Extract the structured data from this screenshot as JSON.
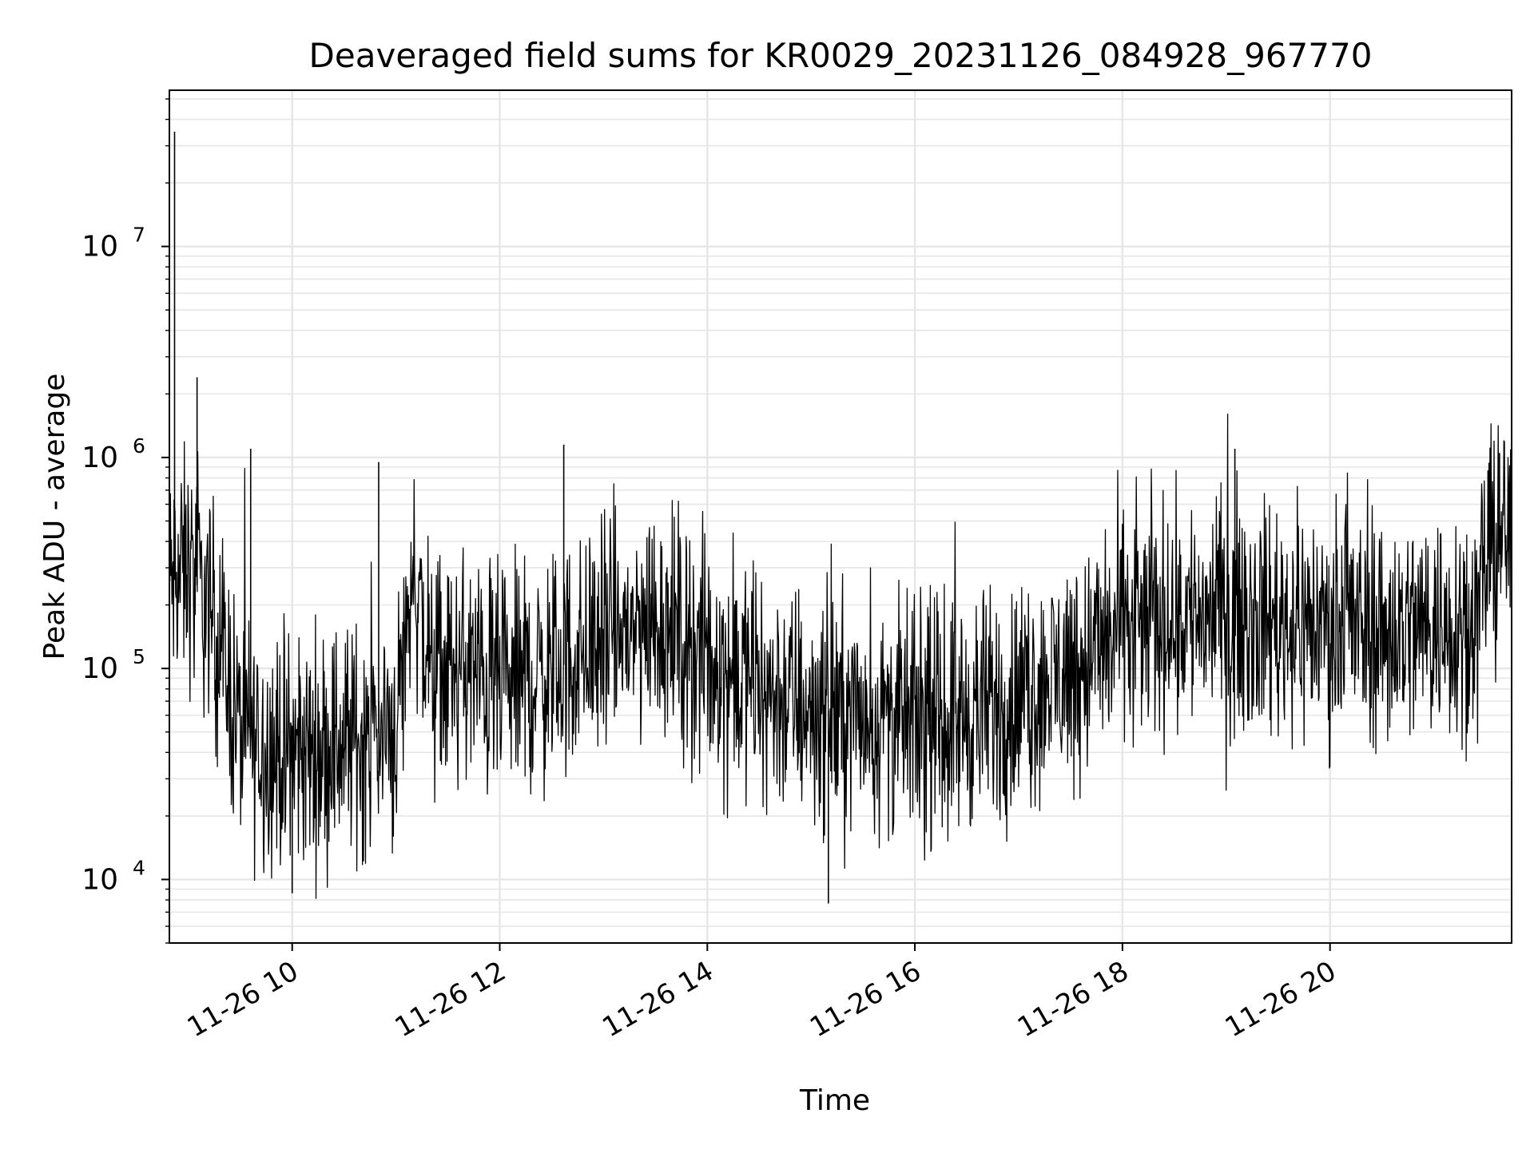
{
  "chart_data": {
    "type": "line",
    "title": "Deaveraged field sums for KR0029_20231126_084928_967770",
    "xlabel": "Time",
    "ylabel": "Peak ADU - average",
    "yscale": "log",
    "ylim": [
      5000,
      55000000
    ],
    "xlim": [
      "11-26 08:49",
      "11-26 21:45"
    ],
    "x_ticks": [
      "11-26 10",
      "11-26 12",
      "11-26 14",
      "11-26 16",
      "11-26 18",
      "11-26 20"
    ],
    "y_ticks": [
      {
        "base": "10",
        "exp": "4",
        "value": 10000
      },
      {
        "base": "10",
        "exp": "5",
        "value": 100000
      },
      {
        "base": "10",
        "exp": "6",
        "value": 1000000
      },
      {
        "base": "10",
        "exp": "7",
        "value": 10000000
      }
    ],
    "grid": true,
    "legend": "none",
    "line_color": "#000000",
    "grid_color": "#e6e6e6",
    "series": [
      {
        "x": [
          "11-26 08:49",
          "11-26 09:00",
          "11-26 09:15",
          "11-26 09:30",
          "11-26 09:45",
          "11-26 10:00",
          "11-26 10:15",
          "11-26 10:30",
          "11-26 10:45",
          "11-26 11:00",
          "11-26 11:10",
          "11-26 11:20",
          "11-26 11:40",
          "11-26 12:00",
          "11-26 12:30",
          "11-26 13:00",
          "11-26 13:15",
          "11-26 13:30",
          "11-26 13:50",
          "11-26 14:00",
          "11-26 14:30",
          "11-26 15:00",
          "11-26 15:30",
          "11-26 16:00",
          "11-26 16:15",
          "11-26 16:30",
          "11-26 17:00",
          "11-26 17:30",
          "11-26 18:00",
          "11-26 18:30",
          "11-26 19:00",
          "11-26 19:30",
          "11-26 20:00",
          "11-26 20:30",
          "11-26 21:00",
          "11-26 21:25",
          "11-26 21:30",
          "11-26 21:45"
        ],
        "y": [
          250000,
          300000,
          170000,
          50000,
          42000,
          38000,
          42000,
          45000,
          48000,
          52000,
          300000,
          90000,
          100000,
          80000,
          95000,
          140000,
          150000,
          180000,
          130000,
          110000,
          80000,
          65000,
          60000,
          55000,
          55000,
          60000,
          70000,
          100000,
          150000,
          180000,
          185000,
          170000,
          160000,
          150000,
          160000,
          180000,
          320000,
          480000
        ]
      }
    ],
    "spikes": [
      {
        "x": "11-26 08:52",
        "y": 35000000
      },
      {
        "x": "11-26 09:05",
        "y": 2400000
      },
      {
        "x": "11-26 09:36",
        "y": 1100000
      },
      {
        "x": "11-26 10:50",
        "y": 950000
      },
      {
        "x": "11-26 12:37",
        "y": 1150000
      },
      {
        "x": "11-26 19:05",
        "y": 1100000
      },
      {
        "x": "11-26 21:38",
        "y": 1050000
      },
      {
        "x": "11-26 15:10",
        "y": 7700
      },
      {
        "x": "11-26 10:00",
        "y": 8600
      }
    ]
  }
}
